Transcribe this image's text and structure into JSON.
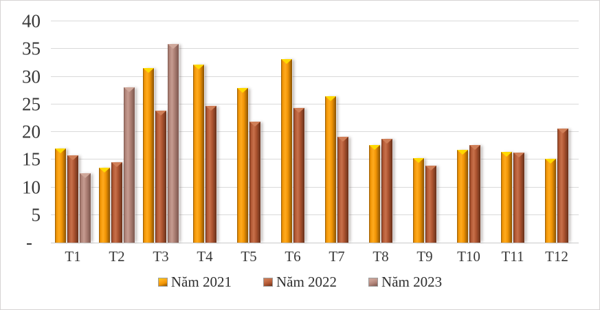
{
  "chart_data": {
    "type": "bar",
    "title": "",
    "xlabel": "",
    "ylabel": "",
    "categories": [
      "T1",
      "T2",
      "T3",
      "T4",
      "T5",
      "T6",
      "T7",
      "T8",
      "T9",
      "T10",
      "T11",
      "T12"
    ],
    "series": [
      {
        "name": "Năm 2021",
        "values": [
          17.0,
          13.5,
          31.5,
          32.2,
          28.0,
          33.2,
          26.4,
          17.7,
          15.3,
          16.8,
          16.4,
          15.1
        ],
        "color_main": "#F09405",
        "color_light": "#FFAB1E",
        "color_edge": "#8A5202",
        "color_cap": "#FFD900"
      },
      {
        "name": "Năm 2022",
        "values": [
          15.8,
          14.5,
          23.8,
          24.7,
          21.9,
          24.3,
          19.1,
          18.7,
          13.9,
          17.7,
          16.3,
          20.6
        ],
        "color_main": "#AD5430",
        "color_light": "#C8714B",
        "color_edge": "#67301A",
        "color_cap": "#D07F58"
      },
      {
        "name": "Năm 2023",
        "values": [
          12.5,
          28.1,
          35.9,
          null,
          null,
          null,
          null,
          null,
          null,
          null,
          null,
          null
        ],
        "color_main": "#AD8075",
        "color_light": "#C69C91",
        "color_edge": "#7C574E",
        "color_cap": "#CFA89B"
      }
    ],
    "ylim": [
      0,
      40
    ],
    "y_ticks": [
      40,
      35,
      30,
      25,
      20,
      15,
      10,
      5
    ],
    "zero_tick_label": "-",
    "grid": true,
    "legend_position": "bottom"
  },
  "colors": {
    "gridline": "#D9D9D9",
    "axis_text": "#383838",
    "frame_border": "#D5D3D3",
    "background": "#FFFFFF"
  }
}
